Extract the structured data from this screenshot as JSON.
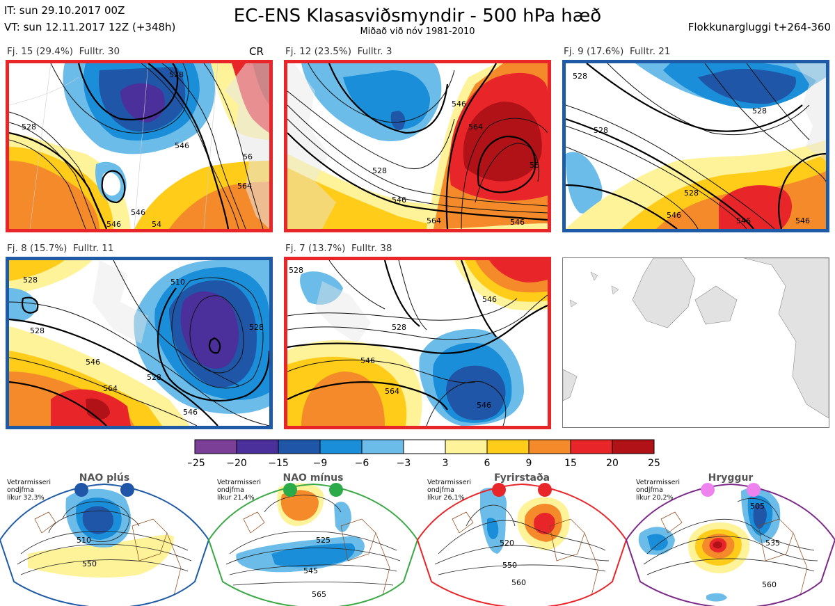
{
  "header": {
    "it_line": "IT: sun 29.10.2017 00Z",
    "vt_line": "VT: sun 12.11.2017 12Z  (+348h)",
    "title": "EC-ENS Klasasviðsmyndir - 500 hPa hæð",
    "subtitle": "Miðað við nóv 1981-2010",
    "window": "Flokkunargluggi t+264-360"
  },
  "colors": {
    "red_frame": "#e8262a",
    "blue_frame": "#1f5aa6",
    "green_frame": "#3aa845",
    "purple_frame": "#7b2a88"
  },
  "chart_data": [
    {
      "type": "heatmap",
      "name": "Ensemble cluster panels (500 hPa height anomaly, dam)",
      "panels": [
        {
          "label": "Fj. 15 (29.4%)",
          "members": "Fulltr. 30",
          "flag": "CR",
          "frame": "red",
          "contours": [
            "528",
            "546",
            "528",
            "546",
            "564",
            "56",
            "546",
            "54"
          ]
        },
        {
          "label": "Fj. 12 (23.5%)",
          "members": "Fulltr. 3",
          "flag": "",
          "frame": "red",
          "contours": [
            "528",
            "546",
            "546",
            "564",
            "56",
            "564",
            "546"
          ]
        },
        {
          "label": "Fj. 9 (17.6%)",
          "members": "Fulltr. 21",
          "flag": "",
          "frame": "blue",
          "contours": [
            "528",
            "528",
            "528",
            "546",
            "546",
            "546",
            "528"
          ]
        },
        {
          "label": "Fj. 8 (15.7%)",
          "members": "Fulltr. 11",
          "flag": "",
          "frame": "blue",
          "contours": [
            "528",
            "528",
            "510",
            "528",
            "546",
            "528",
            "564",
            "546"
          ]
        },
        {
          "label": "Fj. 7 (13.7%)",
          "members": "Fulltr. 38",
          "flag": "",
          "frame": "red",
          "contours": [
            "528",
            "546",
            "528",
            "546",
            "564",
            "546"
          ]
        }
      ]
    },
    {
      "type": "heatmap",
      "name": "colorbar",
      "ticks": [
        "−25",
        "−20",
        "−15",
        "−9",
        "−6",
        "−3",
        "3",
        "6",
        "9",
        "15",
        "20",
        "25"
      ],
      "colors": [
        "#7b3f98",
        "#4b2f9a",
        "#1f56a8",
        "#1a8ed8",
        "#6bbce9",
        "#ffffff",
        "#fff39a",
        "#ffcc1a",
        "#f58a2a",
        "#e8262a",
        "#b01218"
      ]
    },
    {
      "type": "heatmap",
      "name": "Winter regimes",
      "regimes": [
        {
          "name": "NAO plús",
          "info": [
            "Vetrarmisseri",
            "ondjfma",
            "líkur 32,3%"
          ],
          "contours": [
            "510",
            "550"
          ],
          "frame": "blue",
          "marker": "#1f56a8"
        },
        {
          "name": "NAO mínus",
          "info": [
            "Vetrarmisseri",
            "ondjfma",
            "líkur 21,4%"
          ],
          "contours": [
            "525",
            "545",
            "565"
          ],
          "frame": "green",
          "marker": "#2aaa48"
        },
        {
          "name": "Fyrirstaða",
          "info": [
            "Vetrarmisseri",
            "ondjfma",
            "líkur 26,1%"
          ],
          "contours": [
            "520",
            "550",
            "560"
          ],
          "frame": "red",
          "marker": "#e8262a"
        },
        {
          "name": "Hryggur",
          "info": [
            "Vetrarmisseri",
            "ondjfma",
            "líkur 20,2%"
          ],
          "contours": [
            "505",
            "535",
            "560"
          ],
          "frame": "purple",
          "marker": "#ee82ee"
        }
      ]
    }
  ]
}
